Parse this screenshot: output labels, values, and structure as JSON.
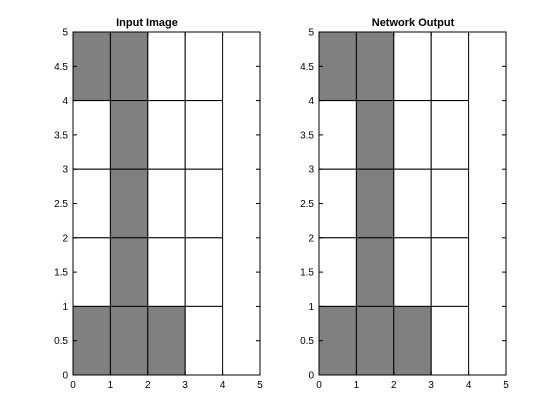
{
  "colors": {
    "filled": "#808080",
    "empty": "#ffffff",
    "grid": "#000000"
  },
  "chart_data": [
    {
      "type": "heatmap",
      "title": "Input Image",
      "xlim": [
        0,
        5
      ],
      "ylim": [
        0,
        5
      ],
      "x_ticks": [
        "0",
        "1",
        "2",
        "3",
        "4",
        "5"
      ],
      "y_ticks": [
        "0",
        "0.5",
        "1",
        "1.5",
        "2",
        "2.5",
        "3",
        "3.5",
        "4",
        "4.5",
        "5"
      ],
      "grid": true,
      "columns": 4,
      "rows": 5,
      "cells_top_to_bottom": [
        [
          1,
          1,
          0,
          0
        ],
        [
          0,
          1,
          0,
          0
        ],
        [
          0,
          1,
          0,
          0
        ],
        [
          0,
          1,
          0,
          0
        ],
        [
          1,
          1,
          1,
          0
        ]
      ]
    },
    {
      "type": "heatmap",
      "title": "Network Output",
      "xlim": [
        0,
        5
      ],
      "ylim": [
        0,
        5
      ],
      "x_ticks": [
        "0",
        "1",
        "2",
        "3",
        "4",
        "5"
      ],
      "y_ticks": [
        "0",
        "0.5",
        "1",
        "1.5",
        "2",
        "2.5",
        "3",
        "3.5",
        "4",
        "4.5",
        "5"
      ],
      "grid": true,
      "columns": 4,
      "rows": 5,
      "cells_top_to_bottom": [
        [
          1,
          1,
          0,
          0
        ],
        [
          0,
          1,
          0,
          0
        ],
        [
          0,
          1,
          0,
          0
        ],
        [
          0,
          1,
          0,
          0
        ],
        [
          1,
          1,
          1,
          0
        ]
      ]
    }
  ]
}
